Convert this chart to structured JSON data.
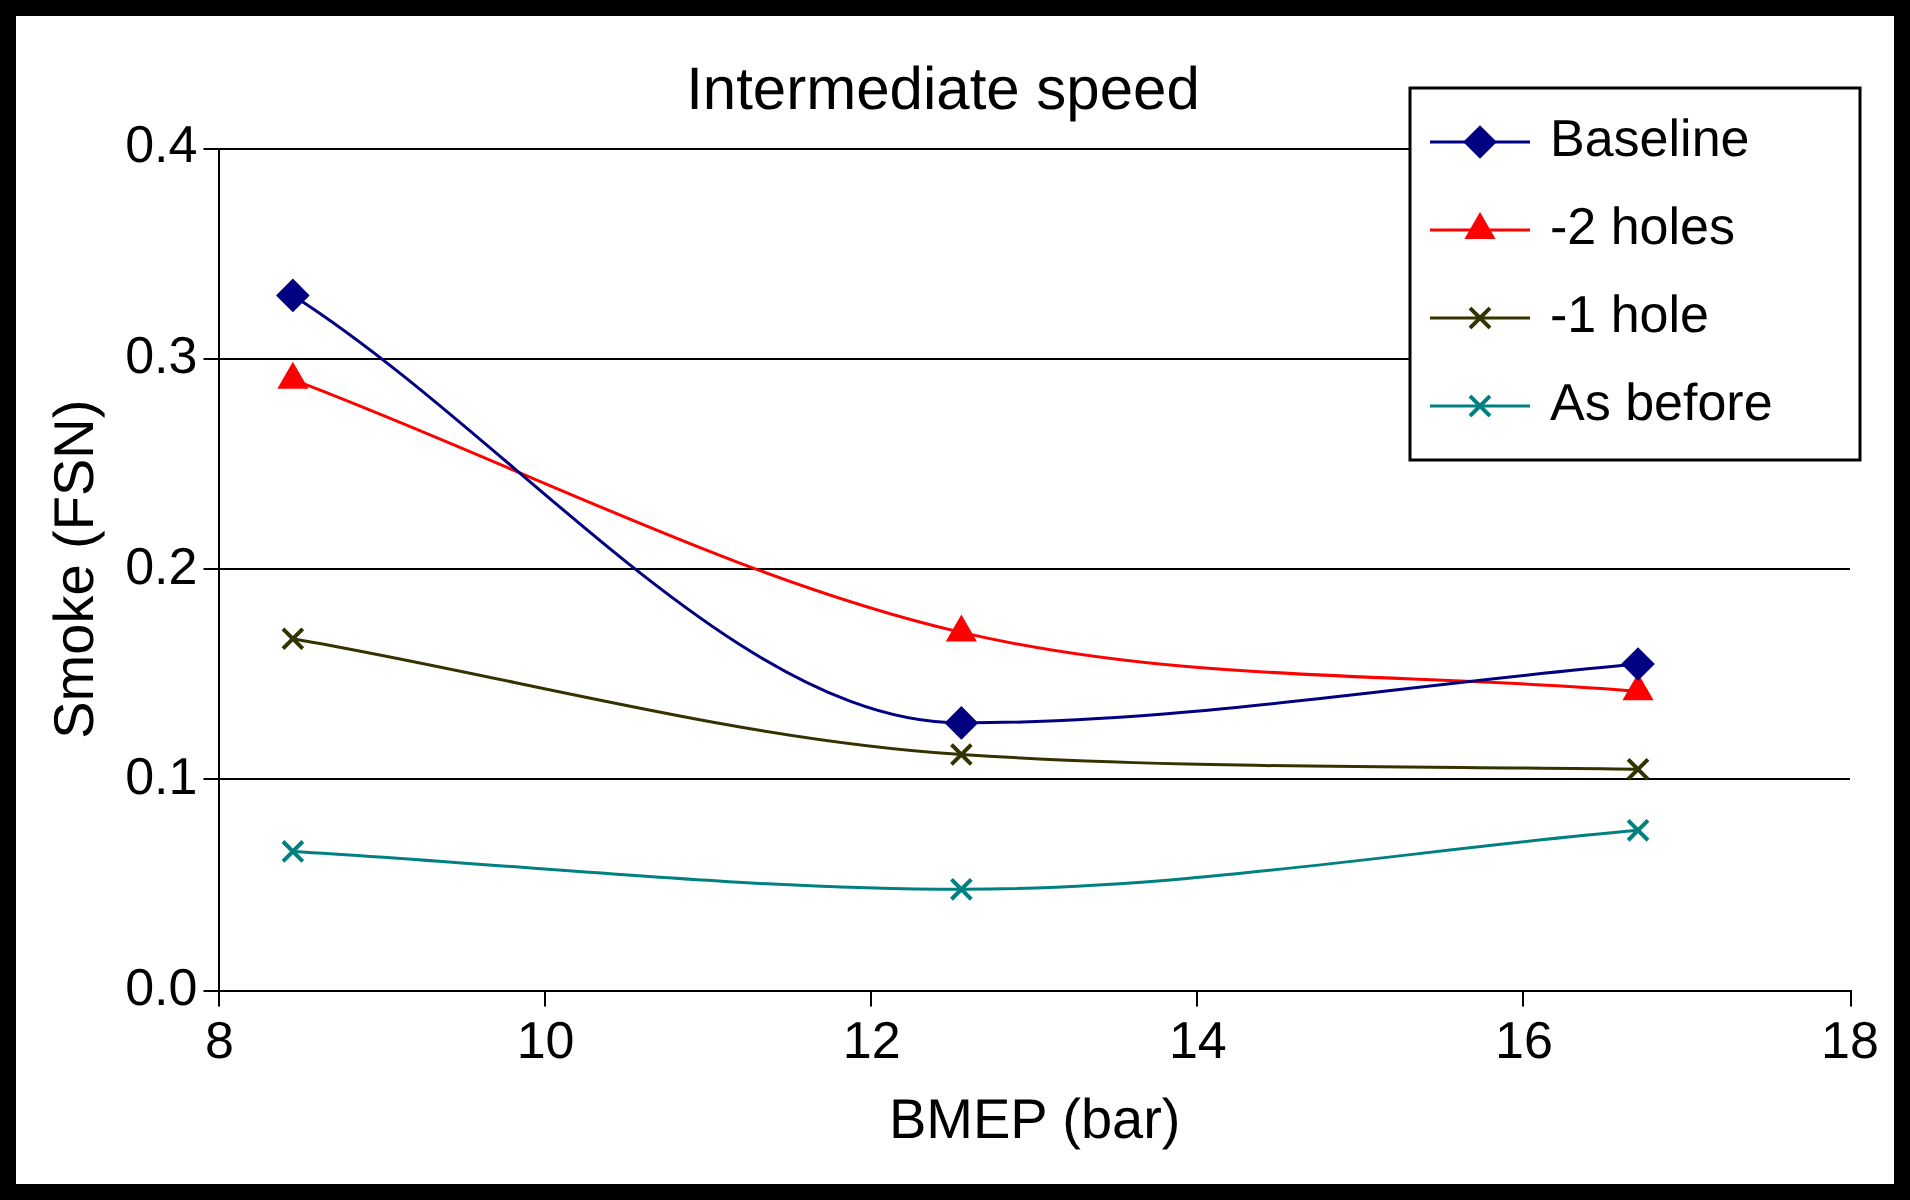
{
  "chart_data": {
    "type": "line",
    "title": "Intermediate speed",
    "xlabel": "BMEP (bar)",
    "ylabel": "Smoke (FSN)",
    "xlim": [
      8,
      18
    ],
    "xticks": [
      8,
      10,
      12,
      14,
      16,
      18
    ],
    "ylim": [
      0,
      0.4
    ],
    "yticks": [
      {
        "value": 0,
        "label": "0.0"
      },
      {
        "value": 0.1,
        "label": "0.1"
      },
      {
        "value": 0.2,
        "label": "0.2"
      },
      {
        "value": 0.3,
        "label": "0.3"
      },
      {
        "value": 0.4,
        "label": "0.4"
      }
    ],
    "grid": "y",
    "legend": "top right",
    "line_style": "solid",
    "x": [
      8.45,
      12.55,
      16.7
    ],
    "series": [
      {
        "name": "Baseline",
        "color": "#000080",
        "marker": "diamond",
        "values": [
          0.33,
          0.127,
          0.155
        ]
      },
      {
        "name": "-2 holes",
        "color": "#ff0000",
        "marker": "triangle",
        "values": [
          0.29,
          0.17,
          0.142
        ]
      },
      {
        "name": "-1 hole",
        "color": "#333300",
        "marker": "cross",
        "values": [
          0.167,
          0.112,
          0.105
        ]
      },
      {
        "name": "As before",
        "color": "#008080",
        "marker": "cross",
        "values": [
          0.066,
          0.048,
          0.076
        ]
      }
    ]
  }
}
